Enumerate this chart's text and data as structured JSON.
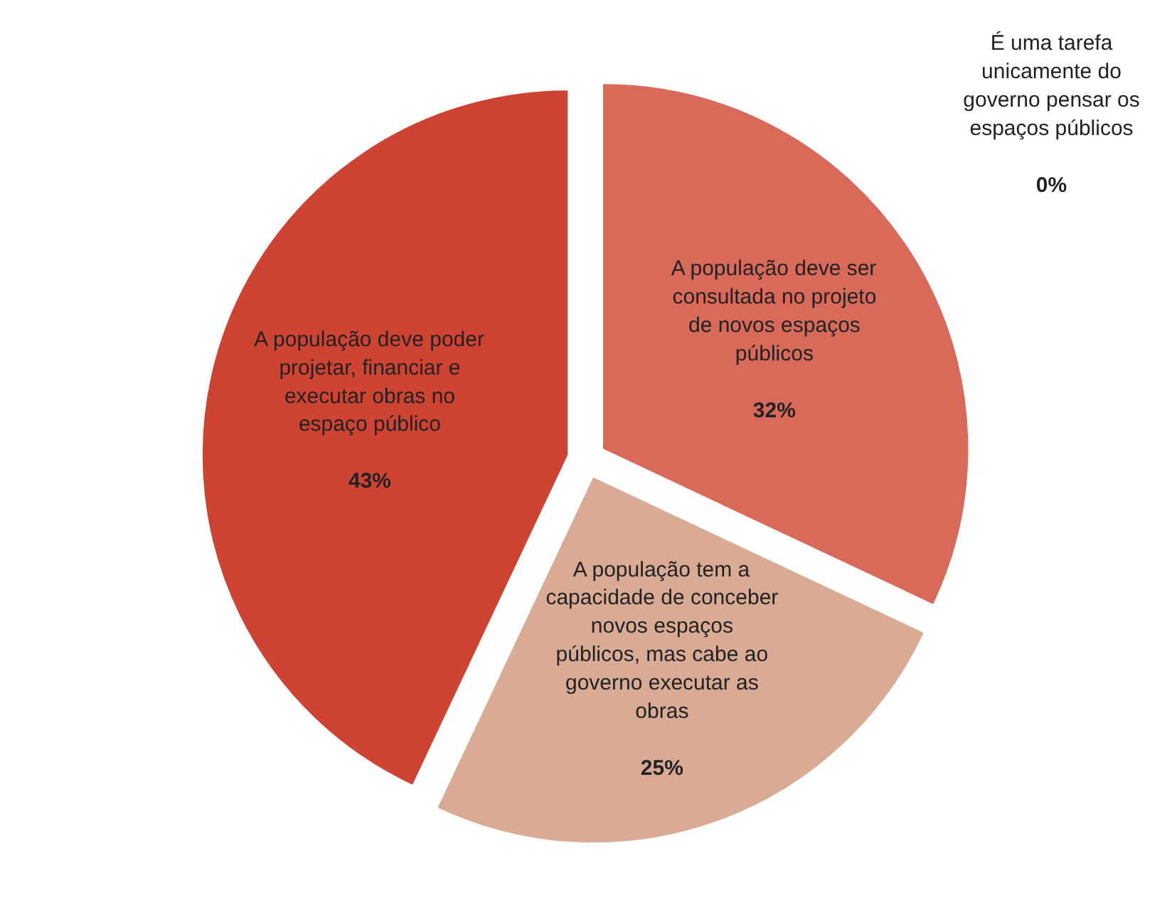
{
  "chart_data": {
    "type": "pie",
    "categories": [
      "É uma tarefa unicamente do governo pensar os espaços públicos",
      "A população deve ser consultada no projeto de novos espaços públicos",
      "A população tem a capacidade de conceber novos espaços públicos, mas cabe ao governo executar as obras",
      "A população deve poder projetar, financiar e executar obras no espaço público"
    ],
    "values": [
      0,
      32,
      25,
      43
    ],
    "value_labels": [
      "0%",
      "32%",
      "25%",
      "43%"
    ],
    "colors": [
      "#e08878",
      "#d96a5a",
      "#d9ab94",
      "#cf4332"
    ]
  }
}
